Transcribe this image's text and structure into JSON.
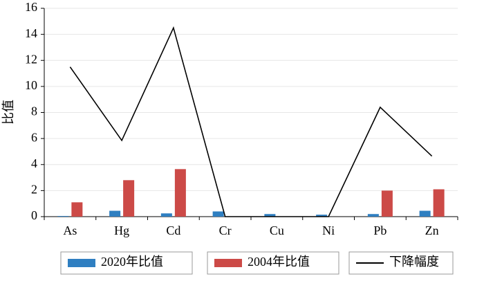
{
  "chart_data": {
    "type": "bar_line",
    "y_label": "比值",
    "categories": [
      "As",
      "Hg",
      "Cd",
      "Cr",
      "Cu",
      "Ni",
      "Pb",
      "Zn"
    ],
    "series": [
      {
        "name": "2020年比值",
        "type": "bar",
        "color": "#2f7fc1",
        "values": [
          0.05,
          0.45,
          0.25,
          0.4,
          0.2,
          0.15,
          0.2,
          0.45
        ]
      },
      {
        "name": "2004年比值",
        "type": "bar",
        "color": "#cc4a47",
        "values": [
          1.1,
          2.8,
          3.65,
          0,
          0,
          0,
          2.0,
          2.1
        ]
      },
      {
        "name": "下降幅度",
        "type": "line",
        "color": "#000000",
        "values": [
          11.5,
          5.85,
          14.5,
          0,
          0,
          0,
          8.4,
          4.65
        ]
      }
    ],
    "ylim": [
      0,
      16
    ],
    "yticks": [
      0,
      2,
      4,
      6,
      8,
      10,
      12,
      14,
      16
    ],
    "grid": true
  }
}
